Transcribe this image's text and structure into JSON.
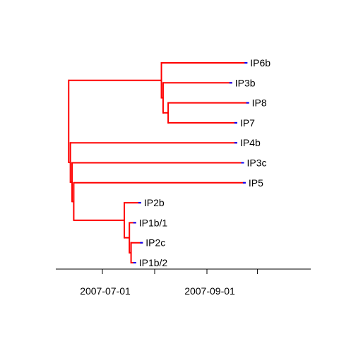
{
  "tree": {
    "tips": [
      {
        "id": "IP6b",
        "label": "IP6b",
        "date": "2007-09-25"
      },
      {
        "id": "IP3b",
        "label": "IP3b",
        "date": "2007-09-16"
      },
      {
        "id": "IP8",
        "label": "IP8",
        "date": "2007-09-26"
      },
      {
        "id": "IP7",
        "label": "IP7",
        "date": "2007-09-19"
      },
      {
        "id": "IP4b",
        "label": "IP4b",
        "date": "2007-09-19"
      },
      {
        "id": "IP3c",
        "label": "IP3c",
        "date": "2007-09-23"
      },
      {
        "id": "IP5",
        "label": "IP5",
        "date": "2007-09-24"
      },
      {
        "id": "IP2b",
        "label": "IP2b",
        "date": "2007-07-24"
      },
      {
        "id": "IP1b/1",
        "label": "IP1b/1",
        "date": "2007-07-21"
      },
      {
        "id": "IP2c",
        "label": "IP2c",
        "date": "2007-07-25"
      },
      {
        "id": "IP1b/2",
        "label": "IP1b/2",
        "date": "2007-07-21"
      }
    ],
    "nodes": [
      {
        "id": "root",
        "parent": null,
        "date": "2007-06-11"
      },
      {
        "id": "n_upper",
        "parent": "root",
        "date": "2007-08-05"
      },
      {
        "id": "n_ip3b_sub",
        "parent": "n_upper",
        "date": "2007-08-06"
      },
      {
        "id": "n_ip8_ip7",
        "parent": "n_ip3b_sub",
        "date": "2007-08-09"
      },
      {
        "id": "n_lower",
        "parent": "root",
        "date": "2007-06-12"
      },
      {
        "id": "n_lower2",
        "parent": "n_lower",
        "date": "2007-06-13"
      },
      {
        "id": "n_lower3",
        "parent": "n_lower2",
        "date": "2007-06-14"
      },
      {
        "id": "n_ip2",
        "parent": "n_lower3",
        "date": "2007-07-14"
      },
      {
        "id": "n_ip2_sub",
        "parent": "n_ip2",
        "date": "2007-07-17"
      },
      {
        "id": "n_ip2_sub2",
        "parent": "n_ip2_sub",
        "date": "2007-07-18"
      }
    ],
    "edges": [
      {
        "parent": "n_upper",
        "child": "IP6b"
      },
      {
        "parent": "n_ip3b_sub",
        "child": "IP3b"
      },
      {
        "parent": "n_ip8_ip7",
        "child": "IP8"
      },
      {
        "parent": "n_ip8_ip7",
        "child": "IP7"
      },
      {
        "parent": "n_lower",
        "child": "IP4b"
      },
      {
        "parent": "n_lower2",
        "child": "IP3c"
      },
      {
        "parent": "n_lower3",
        "child": "IP5"
      },
      {
        "parent": "n_ip2",
        "child": "IP2b"
      },
      {
        "parent": "n_ip2_sub",
        "child": "IP1b/1"
      },
      {
        "parent": "n_ip2_sub2",
        "child": "IP2c"
      },
      {
        "parent": "n_ip2_sub2",
        "child": "IP1b/2"
      },
      {
        "parent": "root",
        "child": "n_upper"
      },
      {
        "parent": "n_upper",
        "child": "n_ip3b_sub"
      },
      {
        "parent": "n_ip3b_sub",
        "child": "n_ip8_ip7"
      },
      {
        "parent": "root",
        "child": "n_lower"
      },
      {
        "parent": "n_lower",
        "child": "n_lower2"
      },
      {
        "parent": "n_lower2",
        "child": "n_lower3"
      },
      {
        "parent": "n_lower3",
        "child": "n_ip2"
      },
      {
        "parent": "n_ip2",
        "child": "n_ip2_sub"
      },
      {
        "parent": "n_ip2_sub",
        "child": "n_ip2_sub2"
      }
    ]
  },
  "axis": {
    "range": [
      "2007-06-01",
      "2007-10-31"
    ],
    "ticks": [
      "2007-07-01",
      "2007-08-01",
      "2007-09-01",
      "2007-10-01"
    ],
    "tick_labels": {
      "2007-07-01": "2007-07-01",
      "2007-08-01": "",
      "2007-09-01": "2007-09-01",
      "2007-10-01": ""
    }
  },
  "colors": {
    "branch": "#ff0000",
    "tip_mark": "#0000ff",
    "axis": "#000000",
    "background": "#ffffff"
  }
}
